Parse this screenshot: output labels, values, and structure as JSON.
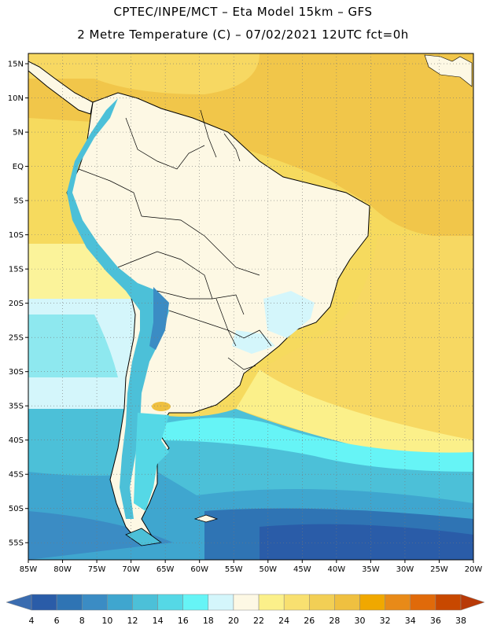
{
  "header": {
    "line1": "CPTEC/INPE/MCT –  Eta Model 15km – GFS",
    "line2": "2 Metre Temperature (C) – 07/02/2021 12UTC fct=0h"
  },
  "map": {
    "lat_labels": [
      "15N",
      "10N",
      "5N",
      "EQ",
      "5S",
      "10S",
      "15S",
      "20S",
      "25S",
      "30S",
      "35S",
      "40S",
      "45S",
      "50S",
      "55S"
    ],
    "lon_labels": [
      "85W",
      "80W",
      "75W",
      "70W",
      "65W",
      "60W",
      "55W",
      "50W",
      "45W",
      "40W",
      "35W",
      "30W",
      "25W",
      "20W"
    ],
    "grid": "dotted",
    "lon_range": [
      -85,
      -20
    ],
    "lat_range": [
      -57.5,
      16.5
    ]
  },
  "legend": {
    "values": [
      "4",
      "6",
      "8",
      "10",
      "12",
      "14",
      "16",
      "18",
      "20",
      "22",
      "24",
      "26",
      "28",
      "30",
      "32",
      "34",
      "36",
      "38"
    ],
    "colors": [
      "#2a5ca8",
      "#2f74b4",
      "#3b8cc4",
      "#3fa6cf",
      "#4cc0d8",
      "#55d8e6",
      "#66f4f6",
      "#d4f6fb",
      "#fdf8e4",
      "#fbf08a",
      "#f8e070",
      "#f2cf55",
      "#efc040",
      "#f0a800",
      "#e88a18",
      "#e06a0a",
      "#c84800"
    ],
    "under_color": "#3a6cb0",
    "over_color": "#b83a08"
  },
  "colors": {
    "ocean_tropical": "#f1c64a",
    "ocean_warm": "#f9e472",
    "ocean_mild": "#fbf39a",
    "land": "#fdf8e4",
    "coast": "#000000"
  }
}
